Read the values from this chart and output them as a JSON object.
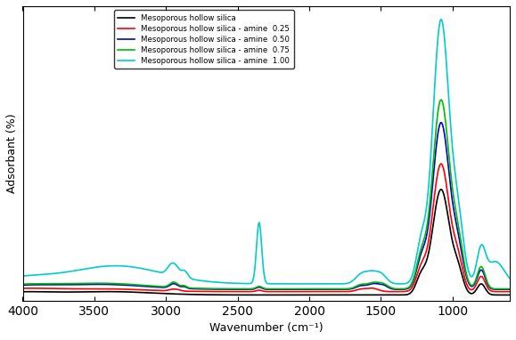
{
  "xlabel": "Wavenumber (cm⁻¹)",
  "ylabel": "Adsorbant (%)",
  "xlim": [
    4000,
    600
  ],
  "series": [
    {
      "label": "Mesoporous hollow silica",
      "color": "#000000",
      "linewidth": 1.2
    },
    {
      "label": "Mesoporous hollow silica - amine  0.25",
      "color": "#ff0000",
      "linewidth": 1.2
    },
    {
      "label": "Mesoporous hollow silica - amine  0.50",
      "color": "#0000cc",
      "linewidth": 1.2
    },
    {
      "label": "Mesoporous hollow silica - amine  0.75",
      "color": "#00bb00",
      "linewidth": 1.2
    },
    {
      "label": "Mesoporous hollow silica - amine  1.00",
      "color": "#00cccc",
      "linewidth": 1.2
    }
  ]
}
